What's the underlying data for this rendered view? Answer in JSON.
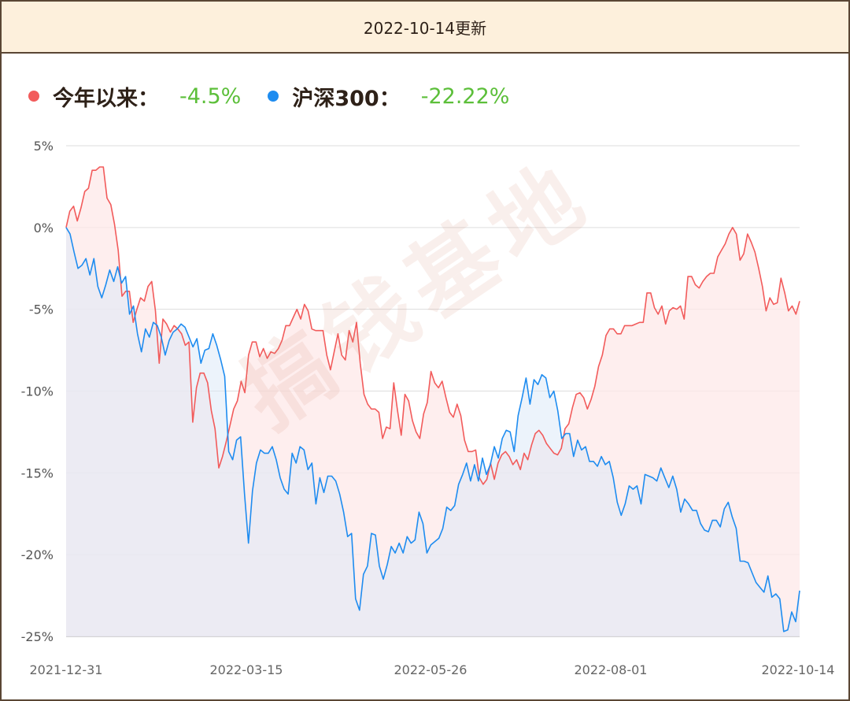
{
  "header": {
    "title": "2022-10-14更新"
  },
  "legend": [
    {
      "label": "今年以来：",
      "value": "-4.5%",
      "dot_color": "#f25b5b",
      "value_color": "#5cbf3a"
    },
    {
      "label": "沪深300：",
      "value": "-22.22%",
      "dot_color": "#1e8cf0",
      "value_color": "#5cbf3a"
    }
  ],
  "watermark": "搞钱基地",
  "chart_data": {
    "type": "area",
    "ylim": [
      -25,
      5
    ],
    "yticks": [
      5,
      0,
      -5,
      -10,
      -15,
      -20,
      -25
    ],
    "ytick_labels": [
      "5%",
      "0%",
      "-5%",
      "-10%",
      "-15%",
      "-20%",
      "-25%"
    ],
    "xtick_labels": [
      "2021-12-31",
      "2022-03-15",
      "2022-05-26",
      "2022-08-01",
      "2022-10-14"
    ],
    "grid": true,
    "series": [
      {
        "name": "今年以来",
        "color": "#f25b5b",
        "fill": "#fde8e8",
        "values": [
          0,
          1.0,
          1.3,
          0.4,
          1.2,
          2.2,
          2.4,
          3.5,
          3.5,
          3.7,
          3.7,
          1.8,
          1.4,
          0.2,
          -1.4,
          -4.2,
          -3.9,
          -3.9,
          -5.8,
          -5.0,
          -4.3,
          -4.5,
          -3.6,
          -3.3,
          -5.1,
          -8.3,
          -5.6,
          -5.9,
          -6.4,
          -6.0,
          -6.2,
          -6.5,
          -7.2,
          -7.0,
          -11.9,
          -9.8,
          -8.9,
          -8.9,
          -9.5,
          -11.2,
          -12.3,
          -14.7,
          -14.0,
          -13.1,
          -12.1,
          -11.1,
          -10.6,
          -9.4,
          -10.1,
          -7.8,
          -7.0,
          -7.0,
          -7.9,
          -7.4,
          -8.0,
          -7.6,
          -7.7,
          -7.4,
          -6.9,
          -6.0,
          -6.0,
          -5.5,
          -5.0,
          -5.6,
          -4.7,
          -5.1,
          -6.2,
          -6.3,
          -6.3,
          -6.3,
          -7.8,
          -8.7,
          -7.6,
          -6.5,
          -7.8,
          -8.1,
          -6.3,
          -7.0,
          -5.8,
          -8.3,
          -10.2,
          -10.8,
          -11.1,
          -11.1,
          -11.3,
          -12.9,
          -12.2,
          -12.3,
          -9.5,
          -11.2,
          -12.7,
          -10.2,
          -10.6,
          -11.8,
          -12.5,
          -12.9,
          -11.4,
          -10.7,
          -8.8,
          -9.5,
          -9.8,
          -9.4,
          -10.4,
          -11.3,
          -11.6,
          -10.8,
          -11.5,
          -13.0,
          -13.7,
          -13.7,
          -13.6,
          -15.3,
          -15.7,
          -15.4,
          -14.4,
          -15.4,
          -14.4,
          -13.9,
          -13.7,
          -14.0,
          -14.5,
          -14.2,
          -14.8,
          -13.8,
          -14.2,
          -13.3,
          -12.6,
          -12.4,
          -12.7,
          -13.2,
          -13.5,
          -13.8,
          -13.9,
          -13.5,
          -12.3,
          -12.0,
          -11.0,
          -10.2,
          -10.1,
          -10.4,
          -11.1,
          -10.5,
          -9.7,
          -8.5,
          -7.8,
          -6.6,
          -6.2,
          -6.2,
          -6.5,
          -6.5,
          -6.0,
          -6.0,
          -6.0,
          -5.9,
          -5.8,
          -5.8,
          -4.0,
          -4.0,
          -4.9,
          -5.3,
          -4.8,
          -5.9,
          -5.1,
          -4.9,
          -5.0,
          -4.8,
          -5.6,
          -3.0,
          -3.0,
          -3.5,
          -3.7,
          -3.3,
          -3.0,
          -2.8,
          -2.8,
          -1.8,
          -1.4,
          -1.0,
          -0.4,
          0.0,
          -0.4,
          -2.0,
          -1.6,
          -0.4,
          -0.9,
          -1.5,
          -2.5,
          -3.6,
          -5.1,
          -4.3,
          -4.7,
          -4.6,
          -3.1,
          -4.0,
          -5.1,
          -4.8,
          -5.3,
          -4.5
        ]
      },
      {
        "name": "沪深300",
        "color": "#1e8cf0",
        "fill": "#dce9f8",
        "values": [
          0,
          -0.4,
          -1.5,
          -2.5,
          -2.3,
          -1.9,
          -2.9,
          -1.9,
          -3.6,
          -4.3,
          -3.5,
          -2.6,
          -3.3,
          -2.4,
          -3.4,
          -3.0,
          -5.3,
          -4.8,
          -6.5,
          -7.6,
          -6.2,
          -6.7,
          -5.8,
          -6.0,
          -6.7,
          -7.8,
          -6.9,
          -6.4,
          -6.2,
          -5.9,
          -6.1,
          -6.7,
          -7.3,
          -6.8,
          -8.3,
          -7.5,
          -7.4,
          -6.5,
          -7.2,
          -8.1,
          -9.1,
          -13.7,
          -14.2,
          -13.0,
          -12.8,
          -16.3,
          -19.3,
          -16.1,
          -14.4,
          -13.6,
          -13.8,
          -13.8,
          -13.4,
          -14.2,
          -15.3,
          -16.0,
          -16.3,
          -13.8,
          -14.4,
          -13.4,
          -13.6,
          -14.8,
          -14.4,
          -16.9,
          -15.3,
          -16.2,
          -15.2,
          -15.2,
          -15.5,
          -16.3,
          -17.4,
          -18.9,
          -18.7,
          -22.7,
          -23.4,
          -21.2,
          -20.7,
          -18.7,
          -18.8,
          -20.7,
          -21.5,
          -20.6,
          -19.5,
          -19.9,
          -19.3,
          -19.9,
          -18.9,
          -19.3,
          -19.1,
          -17.4,
          -18.1,
          -19.9,
          -19.4,
          -19.2,
          -19.0,
          -18.4,
          -17.1,
          -17.3,
          -17.0,
          -15.7,
          -15.1,
          -14.4,
          -15.5,
          -14.5,
          -15.5,
          -14.1,
          -15.1,
          -14.5,
          -13.4,
          -14.1,
          -12.9,
          -12.4,
          -12.5,
          -13.7,
          -11.5,
          -10.4,
          -9.2,
          -10.8,
          -9.3,
          -9.6,
          -9.0,
          -9.2,
          -10.4,
          -10.0,
          -11.2,
          -12.9,
          -12.6,
          -12.6,
          -14.0,
          -13.0,
          -13.6,
          -13.4,
          -14.3,
          -14.3,
          -14.6,
          -14.0,
          -14.5,
          -14.3,
          -15.3,
          -16.8,
          -17.6,
          -16.9,
          -15.8,
          -16.0,
          -15.8,
          -16.9,
          -15.1,
          -15.2,
          -15.3,
          -15.5,
          -14.7,
          -15.3,
          -15.9,
          -15.2,
          -16.0,
          -17.4,
          -16.6,
          -16.9,
          -17.3,
          -17.3,
          -18.1,
          -18.5,
          -18.6,
          -17.9,
          -17.9,
          -18.3,
          -17.2,
          -16.8,
          -17.7,
          -18.4,
          -20.4,
          -20.4,
          -20.5,
          -21.1,
          -21.7,
          -22.0,
          -22.3,
          -21.3,
          -22.6,
          -22.4,
          -22.7,
          -24.7,
          -24.6,
          -23.5,
          -24.1,
          -22.2
        ]
      }
    ]
  }
}
